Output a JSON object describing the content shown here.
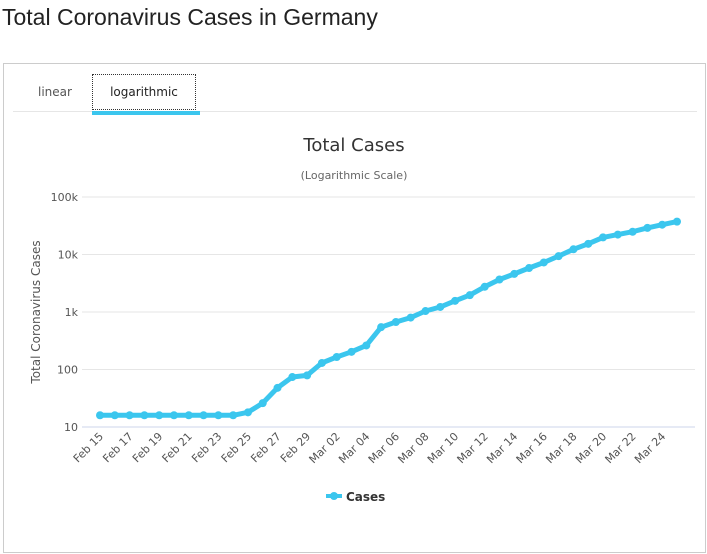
{
  "page_title": "Total Coronavirus Cases in Germany",
  "tabs": [
    {
      "label": "linear",
      "active": false
    },
    {
      "label": "logarithmic",
      "active": true
    }
  ],
  "accent_color": "#3bc6ee",
  "chart_data": {
    "type": "line",
    "title": "Total Cases",
    "subtitle": "(Logarithmic Scale)",
    "ylabel": "Total Coronavirus Cases",
    "xlabel": "",
    "yscale": "log",
    "ylim": [
      10,
      100000
    ],
    "yticks": [
      {
        "v": 10,
        "label": "10"
      },
      {
        "v": 100,
        "label": "100"
      },
      {
        "v": 1000,
        "label": "1k"
      },
      {
        "v": 10000,
        "label": "10k"
      },
      {
        "v": 100000,
        "label": "100k"
      }
    ],
    "grid": true,
    "legend": "bottom-center",
    "x": [
      "Feb 15",
      "Feb 16",
      "Feb 17",
      "Feb 18",
      "Feb 19",
      "Feb 20",
      "Feb 21",
      "Feb 22",
      "Feb 23",
      "Feb 24",
      "Feb 25",
      "Feb 26",
      "Feb 27",
      "Feb 28",
      "Feb 29",
      "Mar 01",
      "Mar 02",
      "Mar 03",
      "Mar 04",
      "Mar 05",
      "Mar 06",
      "Mar 07",
      "Mar 08",
      "Mar 09",
      "Mar 10",
      "Mar 11",
      "Mar 12",
      "Mar 13",
      "Mar 14",
      "Mar 15",
      "Mar 16",
      "Mar 17",
      "Mar 18",
      "Mar 19",
      "Mar 20",
      "Mar 21",
      "Mar 22",
      "Mar 23",
      "Mar 24",
      "Mar 25"
    ],
    "xtick_labels": [
      "Feb 15",
      "Feb 17",
      "Feb 19",
      "Feb 21",
      "Feb 23",
      "Feb 25",
      "Feb 27",
      "Feb 29",
      "Mar 02",
      "Mar 04",
      "Mar 06",
      "Mar 08",
      "Mar 10",
      "Mar 12",
      "Mar 14",
      "Mar 16",
      "Mar 18",
      "Mar 20",
      "Mar 22",
      "Mar 24"
    ],
    "series": [
      {
        "name": "Cases",
        "color": "#3bc6ee",
        "values": [
          16,
          16,
          16,
          16,
          16,
          16,
          16,
          16,
          16,
          16,
          18,
          26,
          48,
          74,
          79,
          130,
          165,
          203,
          262,
          545,
          670,
          800,
          1040,
          1224,
          1565,
          1966,
          2745,
          3675,
          4599,
          5813,
          7272,
          9367,
          12327,
          15320,
          19848,
          22213,
          24873,
          29056,
          32986,
          37323
        ]
      }
    ]
  }
}
